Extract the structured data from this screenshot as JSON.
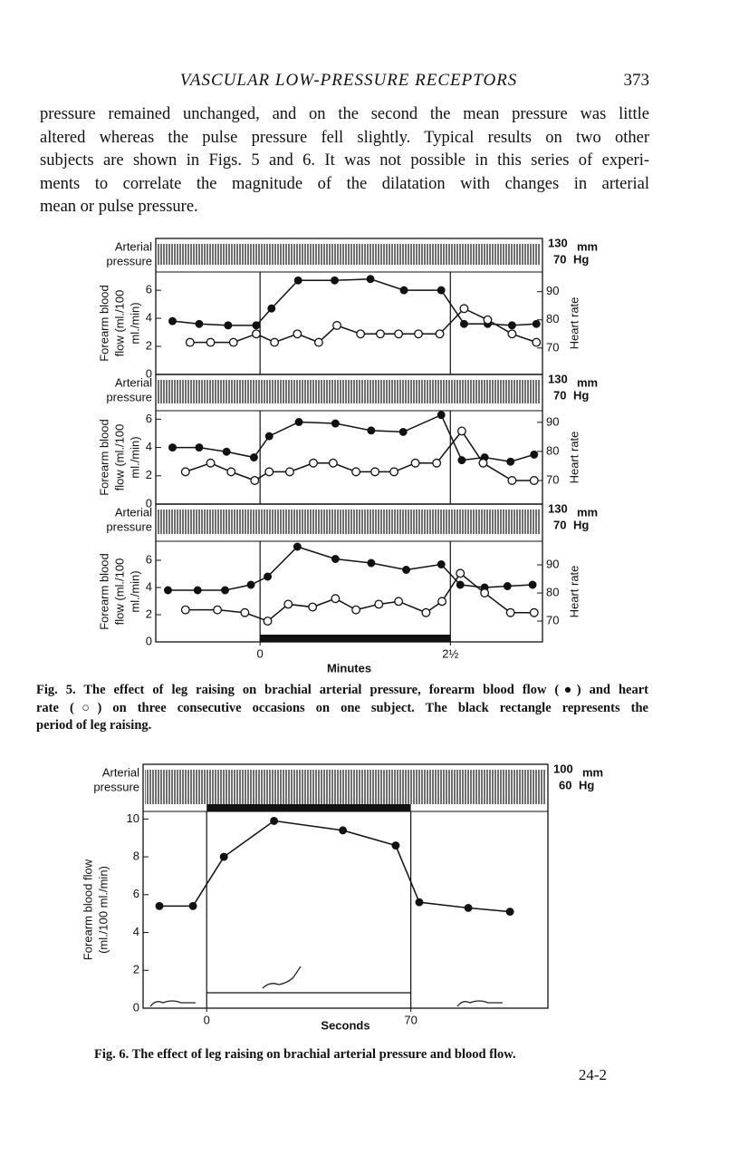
{
  "header": {
    "title": "VASCULAR LOW-PRESSURE RECEPTORS",
    "page_number": "373"
  },
  "paragraph": {
    "lines": [
      "pressure remained unchanged, and on the second the mean pressure was little",
      "altered whereas the pulse pressure fell slightly. Typical results on two other",
      "subjects are shown in Figs. 5 and 6. It was not possible in this series of experi-",
      "ments to correlate the magnitude of the dilatation with changes in arterial",
      "mean or pulse pressure."
    ]
  },
  "captions": {
    "fig5": [
      "Fig. 5. The effect of leg raising on brachial arterial pressure, forearm blood flow (●) and heart",
      "rate (○) on three consecutive occasions on one subject. The black rectangle represents the",
      "period of leg raising."
    ],
    "fig6": [
      "Fig. 6. The effect of leg raising on brachial arterial pressure and blood flow."
    ]
  },
  "footer": {
    "signature": "24-2"
  },
  "chart_data": [
    {
      "type": "line",
      "pressure_label": [
        "Arterial",
        "pressure"
      ],
      "pressure_scale": [
        "130",
        "mm",
        "70",
        "Hg"
      ],
      "ylabel": [
        "Forearm blood",
        "flow (ml./100",
        "ml./min)"
      ],
      "y2label": "Heart rate",
      "xlim": [
        -1.37,
        3.71
      ],
      "ylim": [
        0,
        7.3
      ],
      "yticks": [
        0,
        2,
        4,
        6
      ],
      "y2lim": [
        60.6,
        97
      ],
      "y2ticks": [
        70,
        80,
        90
      ],
      "period": [
        0,
        2.5
      ],
      "series": [
        {
          "marker": "filled",
          "x": [
            -1.15,
            -0.8,
            -0.42,
            -0.05,
            0.15,
            0.5,
            0.98,
            1.45,
            1.89,
            2.38,
            2.68,
            2.99,
            3.31,
            3.63
          ],
          "values": [
            3.8,
            3.6,
            3.5,
            3.5,
            4.7,
            6.7,
            6.7,
            6.8,
            6.0,
            6.0,
            3.6,
            3.6,
            3.5,
            3.6
          ]
        },
        {
          "marker": "open",
          "axis": "y2",
          "x": [
            -0.92,
            -0.65,
            -0.35,
            -0.05,
            0.19,
            0.49,
            0.77,
            1.01,
            1.32,
            1.58,
            1.82,
            2.08,
            2.36,
            2.68,
            2.99,
            3.31,
            3.63
          ],
          "values": [
            72,
            72,
            72,
            75,
            72,
            75,
            72,
            78,
            75,
            75,
            75,
            75,
            75,
            84,
            80,
            75,
            72
          ]
        }
      ]
    },
    {
      "type": "line",
      "pressure_label": [
        "Arterial",
        "pressure"
      ],
      "pressure_scale": [
        "130",
        "mm",
        "70",
        "Hg"
      ],
      "ylabel": [
        "Forearm blood",
        "flow (ml./100",
        "ml./min)"
      ],
      "y2label": "Heart rate",
      "xlim": [
        -1.37,
        3.71
      ],
      "ylim": [
        0,
        6.6
      ],
      "yticks": [
        0,
        2,
        4,
        6
      ],
      "y2lim": [
        61.9,
        94
      ],
      "y2ticks": [
        70,
        80,
        90
      ],
      "period": [
        0,
        2.5
      ],
      "series": [
        {
          "marker": "filled",
          "x": [
            -1.15,
            -0.8,
            -0.44,
            -0.08,
            0.12,
            0.51,
            0.99,
            1.46,
            1.88,
            2.38,
            2.65,
            2.95,
            3.29,
            3.6
          ],
          "values": [
            4.0,
            4.0,
            3.7,
            3.3,
            4.8,
            5.8,
            5.7,
            5.2,
            5.1,
            6.3,
            3.1,
            3.3,
            3.0,
            3.5
          ]
        },
        {
          "marker": "open",
          "axis": "y2",
          "x": [
            -0.98,
            -0.65,
            -0.38,
            -0.07,
            0.12,
            0.39,
            0.7,
            0.96,
            1.26,
            1.51,
            1.76,
            2.04,
            2.32,
            2.65,
            2.93,
            3.31,
            3.6
          ],
          "values": [
            73,
            76,
            73,
            70,
            73,
            73,
            76,
            76,
            73,
            73,
            73,
            76,
            76,
            87,
            76,
            70,
            70
          ]
        }
      ]
    },
    {
      "type": "line",
      "pressure_label": [
        "Arterial",
        "pressure"
      ],
      "pressure_scale": [
        "130",
        "mm",
        "70",
        "Hg"
      ],
      "ylabel": [
        "Forearm blood",
        "flow (ml./100",
        "ml./min)"
      ],
      "y2label": "Heart rate",
      "xlim": [
        -1.37,
        3.71
      ],
      "ylim": [
        0,
        7.4
      ],
      "yticks": [
        0,
        2,
        4,
        6
      ],
      "y2lim": [
        62.6,
        98.4
      ],
      "y2ticks": [
        70,
        80,
        90
      ],
      "xticks": [
        0,
        {
          "value": 2.5,
          "label": "2½"
        }
      ],
      "xlabel": "Minutes",
      "period": [
        0,
        2.5
      ],
      "period_bar": "bottom",
      "series": [
        {
          "marker": "filled",
          "x": [
            -1.21,
            -0.82,
            -0.46,
            -0.12,
            0.1,
            0.49,
            0.99,
            1.46,
            1.92,
            2.38,
            2.63,
            2.95,
            3.25,
            3.58
          ],
          "values": [
            3.8,
            3.8,
            3.8,
            4.2,
            4.8,
            7.0,
            6.1,
            5.8,
            5.3,
            5.7,
            4.2,
            4.0,
            4.1,
            4.2
          ]
        },
        {
          "marker": "open",
          "axis": "y2",
          "x": [
            -0.98,
            -0.56,
            -0.2,
            0.1,
            0.37,
            0.69,
            0.99,
            1.26,
            1.56,
            1.82,
            2.18,
            2.39,
            2.63,
            2.95,
            3.29,
            3.6
          ],
          "values": [
            74,
            74,
            73,
            70,
            76,
            75,
            78,
            74,
            76,
            77,
            73,
            77,
            87,
            80,
            73,
            73
          ]
        }
      ]
    },
    {
      "type": "line",
      "pressure_label": [
        "Arterial",
        "pressure"
      ],
      "pressure_scale": [
        "100",
        "mm",
        "60",
        "Hg"
      ],
      "ylabel": [
        "Forearm blood flow",
        "(ml./100 ml./min)"
      ],
      "xlim": [
        -21.8,
        117
      ],
      "ylim": [
        0,
        10.4
      ],
      "yticks": [
        0,
        2,
        4,
        6,
        8,
        10
      ],
      "xticks": [
        0,
        70
      ],
      "xlabel": "Seconds",
      "period": [
        0,
        70
      ],
      "period_bar": "top",
      "series": [
        {
          "marker": "filled",
          "x": [
            -16.2,
            -4.7,
            5.9,
            23.1,
            46.7,
            64.8,
            72.9,
            89.7,
            104.0
          ],
          "values": [
            5.4,
            5.4,
            8.0,
            9.9,
            9.4,
            8.6,
            5.6,
            5.3,
            5.1
          ]
        }
      ]
    }
  ]
}
